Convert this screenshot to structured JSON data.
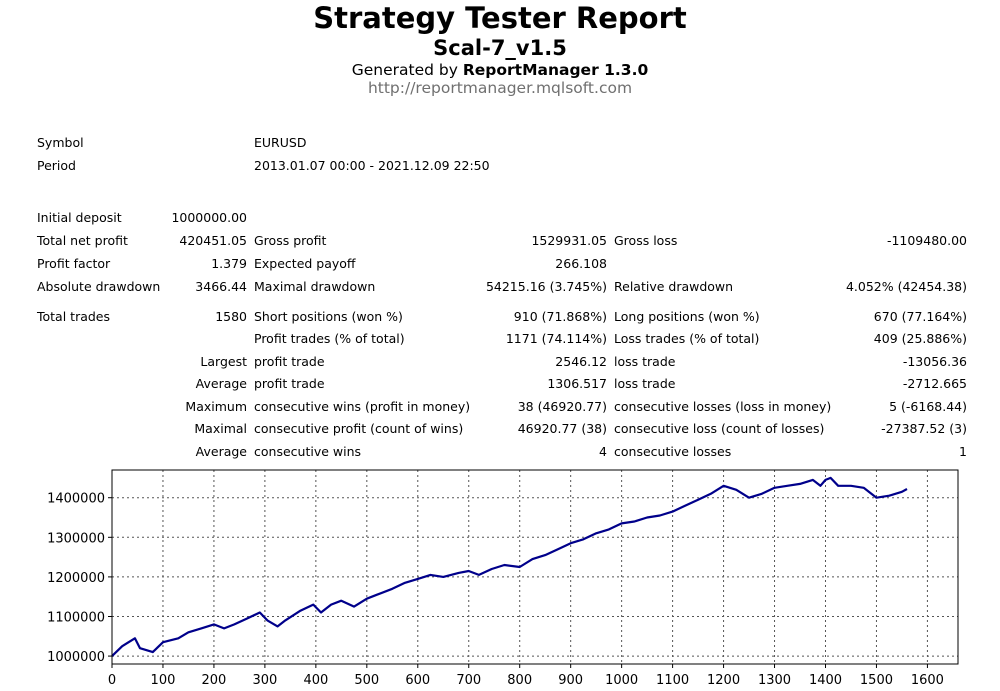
{
  "header": {
    "title": "Strategy Tester Report",
    "subtitle": "Scal-7_v1.5",
    "generated_prefix": "Generated by ",
    "generated_product": "ReportManager 1.3.0",
    "url": "http://reportmanager.mqlsoft.com"
  },
  "info": {
    "symbol_label": "Symbol",
    "symbol_value": "EURUSD",
    "period_label": "Period",
    "period_value": "2013.01.07 00:00 - 2021.12.09 22:50"
  },
  "stats": {
    "initial_deposit_label": "Initial deposit",
    "initial_deposit": "1000000.00",
    "total_net_profit_label": "Total net profit",
    "total_net_profit": "420451.05",
    "gross_profit_label": "Gross profit",
    "gross_profit": "1529931.05",
    "gross_loss_label": "Gross loss",
    "gross_loss": "-1109480.00",
    "profit_factor_label": "Profit factor",
    "profit_factor": "1.379",
    "expected_payoff_label": "Expected payoff",
    "expected_payoff": "266.108",
    "absolute_drawdown_label": "Absolute drawdown",
    "absolute_drawdown": "3466.44",
    "maximal_drawdown_label": "Maximal drawdown",
    "maximal_drawdown": "54215.16 (3.745%)",
    "relative_drawdown_label": "Relative drawdown",
    "relative_drawdown": "4.052% (42454.38)",
    "total_trades_label": "Total trades",
    "total_trades": "1580",
    "short_positions_label": "Short positions (won %)",
    "short_positions": "910 (71.868%)",
    "long_positions_label": "Long positions (won %)",
    "long_positions": "670 (77.164%)",
    "profit_trades_label": "Profit trades (% of total)",
    "profit_trades": "1171 (74.114%)",
    "loss_trades_label": "Loss trades (% of total)",
    "loss_trades": "409 (25.886%)",
    "largest_label": "Largest",
    "largest_profit_label": "profit trade",
    "largest_profit": "2546.12",
    "largest_loss_label": "loss trade",
    "largest_loss": "-13056.36",
    "average_label": "Average",
    "average_profit_label": "profit trade",
    "average_profit": "1306.517",
    "average_loss_label": "loss trade",
    "average_loss": "-2712.665",
    "maximum_label": "Maximum",
    "max_consec_wins_label": "consecutive wins (profit in money)",
    "max_consec_wins": "38 (46920.77)",
    "max_consec_losses_label": "consecutive losses (loss in money)",
    "max_consec_losses": "5 (-6168.44)",
    "maximal_label": "Maximal",
    "maximal_consec_profit_label": "consecutive profit (count of wins)",
    "maximal_consec_profit": "46920.77 (38)",
    "maximal_consec_loss_label": "consecutive loss (count of losses)",
    "maximal_consec_loss": "-27387.52 (3)",
    "avg_label": "Average",
    "avg_consec_wins_label": "consecutive wins",
    "avg_consec_wins": "4",
    "avg_consec_losses_label": "consecutive losses",
    "avg_consec_losses": "1"
  },
  "chart_data": {
    "type": "line",
    "xlim": [
      0,
      1660
    ],
    "ylim": [
      980000,
      1470000
    ],
    "x_ticks": [
      0,
      100,
      200,
      300,
      400,
      500,
      600,
      700,
      800,
      900,
      1000,
      1100,
      1200,
      1300,
      1400,
      1500,
      1600
    ],
    "y_ticks": [
      1000000,
      1100000,
      1200000,
      1300000,
      1400000
    ],
    "grid": true,
    "line_color": "#00008B",
    "series": [
      {
        "x": [
          0,
          20,
          45,
          55,
          80,
          100,
          130,
          150,
          175,
          200,
          220,
          240,
          265,
          290,
          305,
          325,
          340,
          370,
          395,
          410,
          430,
          450,
          475,
          500,
          520,
          550,
          575,
          600,
          625,
          650,
          680,
          700,
          720,
          745,
          770,
          800,
          825,
          850,
          875,
          900,
          925,
          950,
          975,
          1000,
          1025,
          1050,
          1075,
          1100,
          1125,
          1150,
          1175,
          1200,
          1225,
          1250,
          1275,
          1300,
          1325,
          1350,
          1375,
          1390,
          1400,
          1410,
          1425,
          1450,
          1475,
          1500,
          1525,
          1550,
          1560
        ],
        "y": [
          1000000,
          1025000,
          1045000,
          1020000,
          1010000,
          1035000,
          1045000,
          1060000,
          1070000,
          1080000,
          1070000,
          1080000,
          1095000,
          1110000,
          1090000,
          1075000,
          1090000,
          1115000,
          1130000,
          1110000,
          1130000,
          1140000,
          1125000,
          1145000,
          1155000,
          1170000,
          1185000,
          1195000,
          1205000,
          1200000,
          1210000,
          1215000,
          1205000,
          1220000,
          1230000,
          1225000,
          1245000,
          1255000,
          1270000,
          1285000,
          1295000,
          1310000,
          1320000,
          1335000,
          1340000,
          1350000,
          1355000,
          1365000,
          1380000,
          1395000,
          1410000,
          1430000,
          1420000,
          1400000,
          1410000,
          1425000,
          1430000,
          1435000,
          1445000,
          1430000,
          1445000,
          1450000,
          1430000,
          1430000,
          1425000,
          1400000,
          1405000,
          1415000,
          1422000
        ]
      }
    ]
  }
}
